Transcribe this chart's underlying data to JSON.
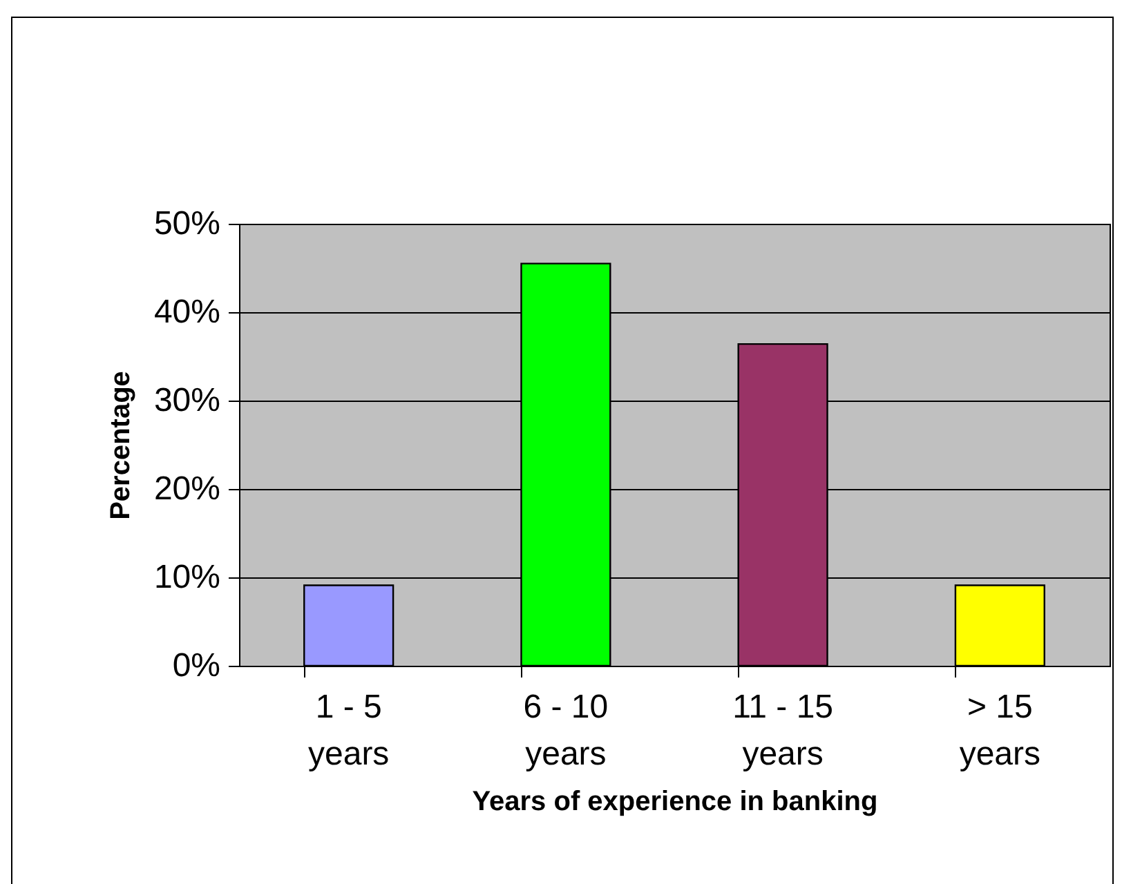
{
  "chart_data": {
    "type": "bar",
    "xlabel": "Years of experience in banking",
    "ylabel": "Percentage",
    "categories": [
      "1 - 5 years",
      "6 - 10 years",
      "11 - 15 years",
      "> 15 years"
    ],
    "values": [
      9.1,
      45.5,
      36.4,
      9.1
    ],
    "colors": [
      "#9999ff",
      "#00ff00",
      "#993366",
      "#ffff00"
    ],
    "ylim": [
      0,
      50
    ],
    "yticks": [
      {
        "value": 0,
        "label": "0%"
      },
      {
        "value": 10,
        "label": "10%"
      },
      {
        "value": 20,
        "label": "20%"
      },
      {
        "value": 30,
        "label": "30%"
      },
      {
        "value": 40,
        "label": "40%"
      },
      {
        "value": 50,
        "label": "50%"
      }
    ],
    "grid": "y",
    "legend": false
  }
}
